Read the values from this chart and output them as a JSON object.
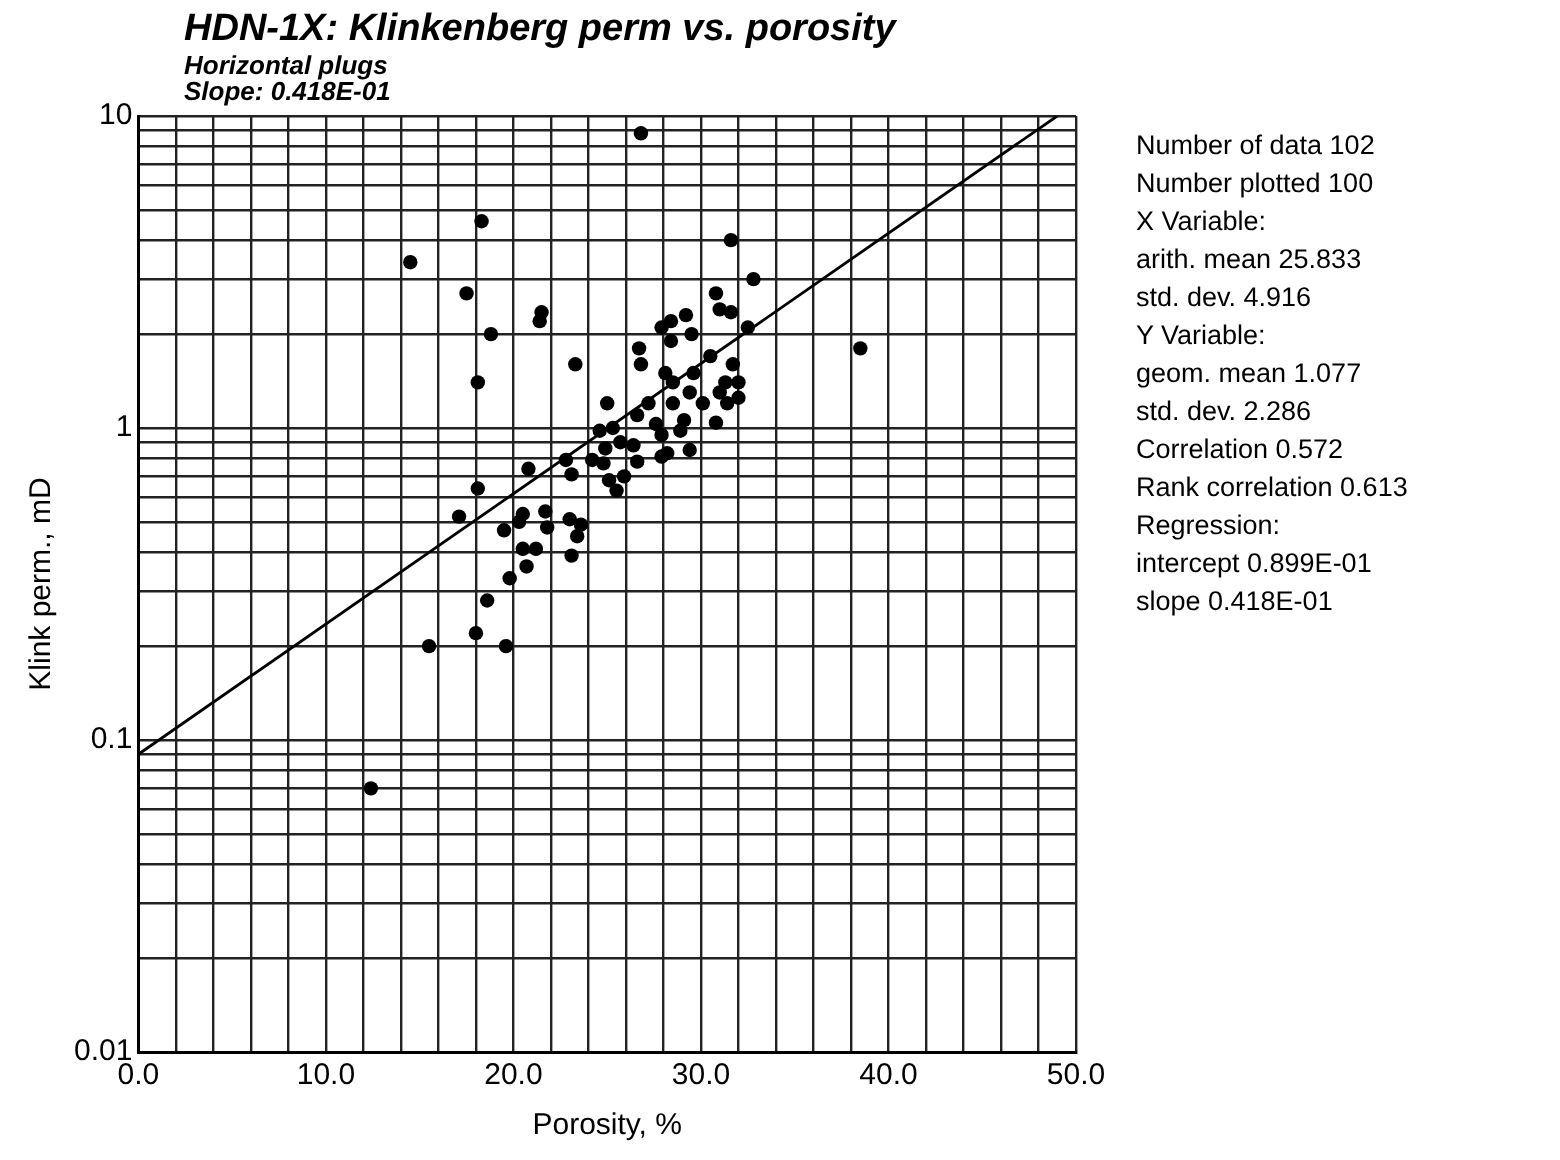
{
  "chart_data": {
    "type": "scatter",
    "title": "HDN-1X: Klinkenberg perm vs. porosity",
    "subtitle": "Horizontal plugs\nSlope: 0.418E-01",
    "xlabel": "Porosity, %",
    "ylabel": "Klink perm., mD",
    "log": "y",
    "grid": true,
    "legend": false,
    "xlim": [
      0,
      50
    ],
    "xticks": [
      {
        "value": 0,
        "label": "0.0"
      },
      {
        "value": 2,
        "label": null
      },
      {
        "value": 4,
        "label": null
      },
      {
        "value": 6,
        "label": null
      },
      {
        "value": 8,
        "label": null
      },
      {
        "value": 10,
        "label": "10.0"
      },
      {
        "value": 12,
        "label": null
      },
      {
        "value": 14,
        "label": null
      },
      {
        "value": 16,
        "label": null
      },
      {
        "value": 18,
        "label": null
      },
      {
        "value": 20,
        "label": "20.0"
      },
      {
        "value": 22,
        "label": null
      },
      {
        "value": 24,
        "label": null
      },
      {
        "value": 26,
        "label": null
      },
      {
        "value": 28,
        "label": null
      },
      {
        "value": 30,
        "label": "30.0"
      },
      {
        "value": 32,
        "label": null
      },
      {
        "value": 34,
        "label": null
      },
      {
        "value": 36,
        "label": null
      },
      {
        "value": 38,
        "label": null
      },
      {
        "value": 40,
        "label": "40.0"
      },
      {
        "value": 42,
        "label": null
      },
      {
        "value": 44,
        "label": null
      },
      {
        "value": 46,
        "label": null
      },
      {
        "value": 48,
        "label": null
      },
      {
        "value": 50,
        "label": "50.0"
      }
    ],
    "ylim": [
      0.01,
      10
    ],
    "yticks": [
      0.01,
      {
        "value": 0.02,
        "label": null
      },
      {
        "value": 0.03,
        "label": null
      },
      {
        "value": 0.04,
        "label": null
      },
      {
        "value": 0.05,
        "label": null
      },
      {
        "value": 0.06,
        "label": null
      },
      {
        "value": 0.07,
        "label": null
      },
      {
        "value": 0.08,
        "label": null
      },
      {
        "value": 0.09,
        "label": null
      },
      0.1,
      {
        "value": 0.2,
        "label": null
      },
      {
        "value": 0.3,
        "label": null
      },
      {
        "value": 0.4,
        "label": null
      },
      {
        "value": 0.5,
        "label": null
      },
      {
        "value": 0.6,
        "label": null
      },
      {
        "value": 0.7,
        "label": null
      },
      {
        "value": 0.8,
        "label": null
      },
      {
        "value": 0.9,
        "label": null
      },
      1,
      {
        "value": 2,
        "label": null
      },
      {
        "value": 3,
        "label": null
      },
      {
        "value": 4,
        "label": null
      },
      {
        "value": 5,
        "label": null
      },
      {
        "value": 6,
        "label": null
      },
      {
        "value": 7,
        "label": null
      },
      {
        "value": 8,
        "label": null
      },
      {
        "value": 9,
        "label": null
      },
      10
    ],
    "series": [
      {
        "marker": "circle",
        "color": "#000000",
        "x": [
          14.5,
          18.3,
          17.5,
          18.8,
          18.1,
          21.5,
          21.4,
          23.3,
          31.6,
          32.8,
          30.8,
          31.0,
          31.6,
          32.5,
          27.9,
          28.4,
          29.2,
          28.4,
          29.5,
          26.7,
          26.8,
          30.5,
          31.7,
          28.1,
          29.6,
          28.5,
          31.3,
          32.0,
          29.4,
          31.0,
          30.1,
          31.4,
          32.0,
          25.0,
          27.2,
          28.5,
          26.6,
          27.6,
          29.1,
          30.8,
          24.6,
          25.3,
          27.9,
          28.9,
          25.7,
          26.4,
          24.9,
          27.9,
          28.2,
          29.4,
          22.8,
          24.2,
          24.8,
          26.6,
          20.8,
          23.1,
          25.1,
          25.9,
          25.5,
          18.1,
          17.1,
          20.5,
          21.7,
          21.8,
          19.5,
          20.3,
          23.0,
          23.6,
          23.4,
          20.5,
          21.2,
          23.1,
          20.7,
          19.8,
          18.6,
          18.0,
          19.6,
          15.5,
          12.4,
          26.8,
          38.5
        ],
        "values": [
          3.4,
          4.6,
          2.7,
          2.0,
          1.4,
          2.35,
          2.2,
          1.6,
          4.0,
          3.0,
          2.7,
          2.4,
          2.35,
          2.1,
          2.1,
          2.2,
          2.3,
          1.9,
          2.0,
          1.8,
          1.6,
          1.7,
          1.6,
          1.5,
          1.5,
          1.4,
          1.4,
          1.4,
          1.3,
          1.3,
          1.2,
          1.2,
          1.25,
          1.2,
          1.2,
          1.2,
          1.1,
          1.03,
          1.06,
          1.04,
          0.98,
          1.0,
          0.95,
          0.98,
          0.9,
          0.88,
          0.86,
          0.81,
          0.83,
          0.85,
          0.79,
          0.79,
          0.77,
          0.78,
          0.74,
          0.71,
          0.68,
          0.7,
          0.63,
          0.64,
          0.52,
          0.53,
          0.54,
          0.48,
          0.47,
          0.5,
          0.51,
          0.49,
          0.45,
          0.41,
          0.41,
          0.39,
          0.36,
          0.33,
          0.28,
          0.22,
          0.2,
          0.2,
          0.07,
          8.8,
          1.8
        ]
      },
      {
        "type": "line",
        "marker": "none",
        "line_style": "solid",
        "color": "#000000",
        "x": [
          0,
          49
        ],
        "values": [
          0.09,
          10
        ]
      }
    ],
    "annotations": [
      "Number of data 102",
      "Number plotted 100",
      "X Variable:",
      "arith. mean 25.833",
      "std. dev. 4.916",
      "Y Variable:",
      "geom. mean 1.077",
      "std. dev. 2.286",
      "Correlation 0.572",
      "Rank correlation 0.613",
      "Regression:",
      "intercept 0.899E-01",
      "slope 0.418E-01"
    ]
  }
}
